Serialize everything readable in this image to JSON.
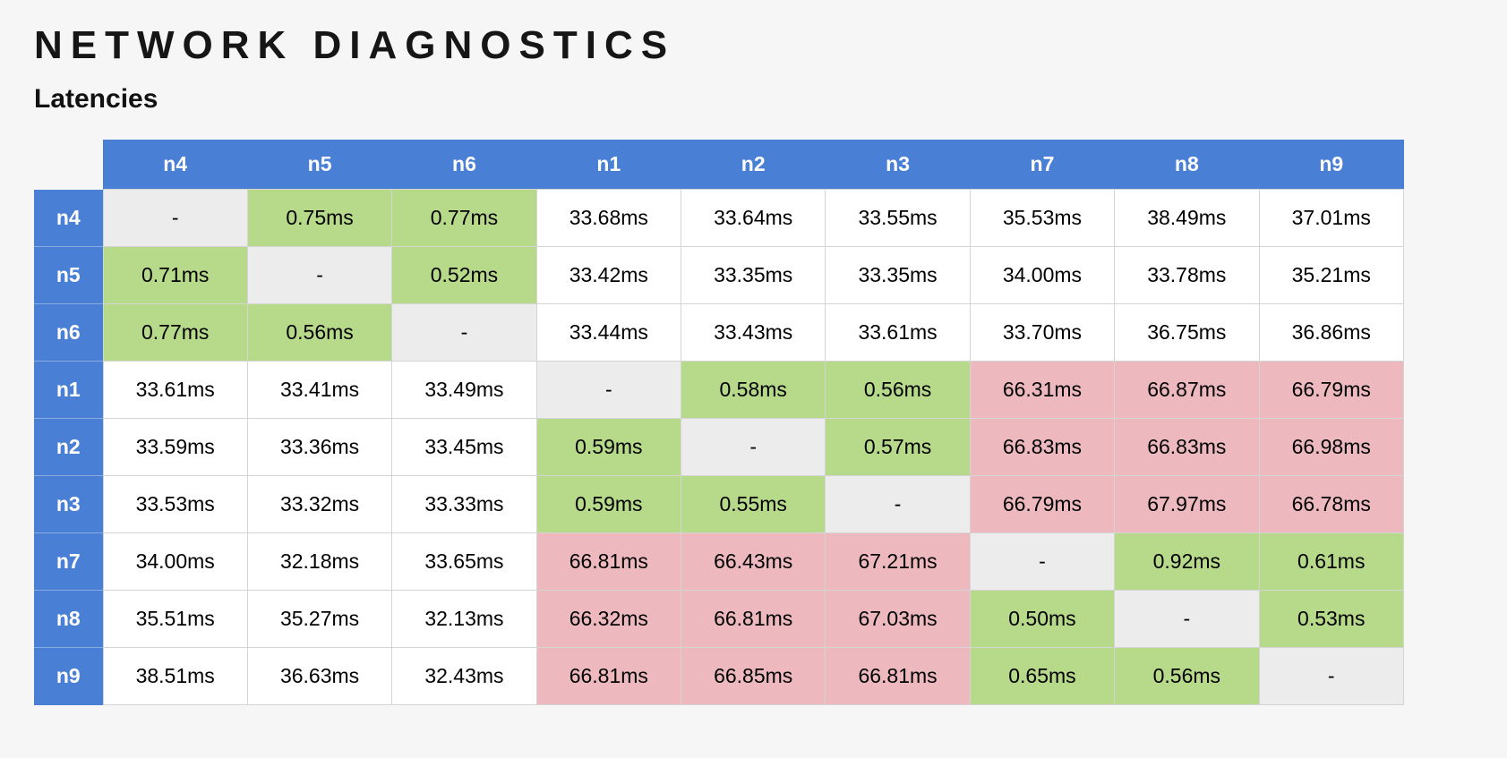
{
  "page": {
    "title": "NETWORK DIAGNOSTICS",
    "subtitle": "Latencies"
  },
  "colors": {
    "header_bg": "#4a7fd6",
    "cell_bg": "#ffffff",
    "low_latency": "#b6d98a",
    "high_latency": "#edb9bf",
    "diagonal": "#ececec"
  },
  "chart_data": {
    "type": "heatmap",
    "title": "NETWORK DIAGNOSTICS",
    "subtitle": "Latencies",
    "unit": "ms",
    "diagonal_text": "-",
    "thresholds": {
      "low_below_ms": 10,
      "high_from_ms": 60
    },
    "columns": [
      "n4",
      "n5",
      "n6",
      "n1",
      "n2",
      "n3",
      "n7",
      "n8",
      "n9"
    ],
    "rows": [
      "n4",
      "n5",
      "n6",
      "n1",
      "n2",
      "n3",
      "n7",
      "n8",
      "n9"
    ],
    "values_ms": [
      [
        null,
        0.75,
        0.77,
        33.68,
        33.64,
        33.55,
        35.53,
        38.49,
        37.01
      ],
      [
        0.71,
        null,
        0.52,
        33.42,
        33.35,
        33.35,
        34.0,
        33.78,
        35.21
      ],
      [
        0.77,
        0.56,
        null,
        33.44,
        33.43,
        33.61,
        33.7,
        36.75,
        36.86
      ],
      [
        33.61,
        33.41,
        33.49,
        null,
        0.58,
        0.56,
        66.31,
        66.87,
        66.79
      ],
      [
        33.59,
        33.36,
        33.45,
        0.59,
        null,
        0.57,
        66.83,
        66.83,
        66.98
      ],
      [
        33.53,
        33.32,
        33.33,
        0.59,
        0.55,
        null,
        66.79,
        67.97,
        66.78
      ],
      [
        34.0,
        32.18,
        33.65,
        66.81,
        66.43,
        67.21,
        null,
        0.92,
        0.61
      ],
      [
        35.51,
        35.27,
        32.13,
        66.32,
        66.81,
        67.03,
        0.5,
        null,
        0.53
      ],
      [
        38.51,
        36.63,
        32.43,
        66.81,
        66.85,
        66.81,
        0.65,
        0.56,
        null
      ]
    ]
  }
}
